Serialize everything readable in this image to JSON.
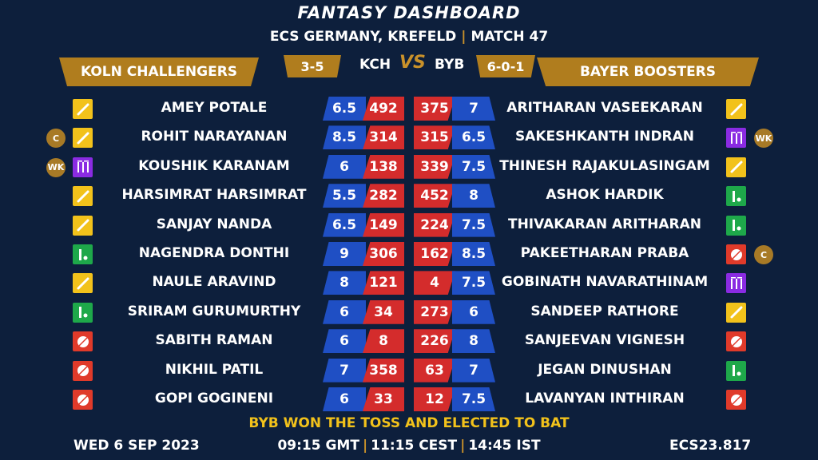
{
  "header": {
    "title": "FANTASY DASHBOARD",
    "venue": "ECS GERMANY, KREFELD",
    "match": "MATCH 47"
  },
  "home": {
    "name": "KOLN CHALLENGERS",
    "abbr": "KCH",
    "record": "3-5"
  },
  "away": {
    "name": "BAYER BOOSTERS",
    "abbr": "BYB",
    "record": "6-0-1"
  },
  "vs": "VS",
  "role_icons": {
    "bat": "cricket-bat-icon",
    "wk": "wicket-stumps-icon",
    "bowl": "cricket-ball-icon",
    "ar": "all-rounder-icon"
  },
  "colors": {
    "background": "#0d1f3c",
    "gold": "#b07d1e",
    "credits": "#1f4fc4",
    "points": "#d42c2c",
    "toss": "#f2c21b"
  },
  "rows": [
    {
      "home": {
        "name": "AMEY POTALE",
        "credits": "6.5",
        "points": "492",
        "role": "bat",
        "badge": ""
      },
      "away": {
        "name": "ARITHARAN VASEEKARAN",
        "credits": "7",
        "points": "375",
        "role": "bat",
        "badge": ""
      }
    },
    {
      "home": {
        "name": "ROHIT NARAYANAN",
        "credits": "8.5",
        "points": "314",
        "role": "bat",
        "badge": "C"
      },
      "away": {
        "name": "SAKESHKANTH INDRAN",
        "credits": "6.5",
        "points": "315",
        "role": "wk",
        "badge": "WK"
      }
    },
    {
      "home": {
        "name": "KOUSHIK KARANAM",
        "credits": "6",
        "points": "138",
        "role": "wk",
        "badge": "WK"
      },
      "away": {
        "name": "THINESH RAJAKULASINGAM",
        "credits": "7.5",
        "points": "339",
        "role": "bat",
        "badge": ""
      }
    },
    {
      "home": {
        "name": "HARSIMRAT HARSIMRAT",
        "credits": "5.5",
        "points": "282",
        "role": "bat",
        "badge": ""
      },
      "away": {
        "name": "ASHOK HARDIK",
        "credits": "8",
        "points": "452",
        "role": "ar",
        "badge": ""
      }
    },
    {
      "home": {
        "name": "SANJAY NANDA",
        "credits": "6.5",
        "points": "149",
        "role": "bat",
        "badge": ""
      },
      "away": {
        "name": "THIVAKARAN ARITHARAN",
        "credits": "7.5",
        "points": "224",
        "role": "ar",
        "badge": ""
      }
    },
    {
      "home": {
        "name": "NAGENDRA DONTHI",
        "credits": "9",
        "points": "306",
        "role": "ar",
        "badge": ""
      },
      "away": {
        "name": "PAKEETHARAN PRABA",
        "credits": "8.5",
        "points": "162",
        "role": "bowl",
        "badge": "C"
      }
    },
    {
      "home": {
        "name": "NAULE ARAVIND",
        "credits": "8",
        "points": "121",
        "role": "bat",
        "badge": ""
      },
      "away": {
        "name": "GOBINATH NAVARATHINAM",
        "credits": "7.5",
        "points": "4",
        "role": "wk",
        "badge": ""
      }
    },
    {
      "home": {
        "name": "SRIRAM GURUMURTHY",
        "credits": "6",
        "points": "34",
        "role": "ar",
        "badge": ""
      },
      "away": {
        "name": "SANDEEP RATHORE",
        "credits": "6",
        "points": "273",
        "role": "bat",
        "badge": ""
      }
    },
    {
      "home": {
        "name": "SABITH RAMAN",
        "credits": "6",
        "points": "8",
        "role": "bowl",
        "badge": ""
      },
      "away": {
        "name": "SANJEEVAN VIGNESH",
        "credits": "8",
        "points": "226",
        "role": "bowl",
        "badge": ""
      }
    },
    {
      "home": {
        "name": "NIKHIL PATIL",
        "credits": "7",
        "points": "358",
        "role": "bowl",
        "badge": ""
      },
      "away": {
        "name": "JEGAN DINUSHAN",
        "credits": "7",
        "points": "63",
        "role": "ar",
        "badge": ""
      }
    },
    {
      "home": {
        "name": "GOPI GOGINENI",
        "credits": "6",
        "points": "33",
        "role": "bowl",
        "badge": ""
      },
      "away": {
        "name": "LAVANYAN INTHIRAN",
        "credits": "7.5",
        "points": "12",
        "role": "bowl",
        "badge": ""
      }
    }
  ],
  "toss": "BYB WON THE TOSS AND ELECTED TO BAT",
  "footer": {
    "date": "WED 6 SEP 2023",
    "gmt": "09:15 GMT",
    "cest": "11:15 CEST",
    "ist": "14:45 IST",
    "code": "ECS23.817"
  }
}
